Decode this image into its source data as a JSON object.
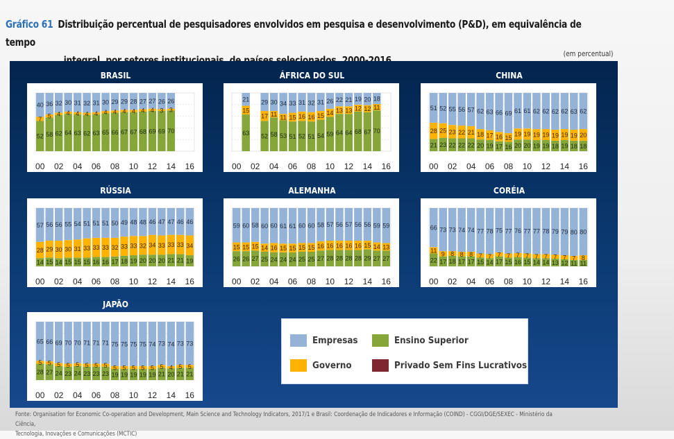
{
  "header": {
    "figure_number": "Gráfico 61",
    "title_line1": "Distribuição percentual de pesquisadores envolvidos em pesquisa e desenvolvimento (P&D), em equivalência de tempo",
    "title_line2": "integral, por setores institucionais, de países selecionados, 2000-2016",
    "unit": "(em percentual)"
  },
  "legend": [
    {
      "key": "empresas",
      "label": "Empresas",
      "color": "#95b3d7"
    },
    {
      "key": "ensino",
      "label": "Ensino Superior",
      "color": "#86a63a"
    },
    {
      "key": "governo",
      "label": "Governo",
      "color": "#ffb300"
    },
    {
      "key": "privado",
      "label": "Privado Sem Fins Lucrativos",
      "color": "#7f2730"
    }
  ],
  "source": {
    "line1": "Fonte: Organisation for Economic Co-operation and Development, Main Science and Technology Indicators, 2017/1 e Brasil: Coordenação de Indicadores e Informação (COIND) - CGGI/DGE/SEXEC - Ministério da Ciência,",
    "line2": "Tecnologia, Inovações e Comunicações (MCTIC)"
  },
  "chart_data": [
    {
      "type": "bar",
      "stacked": true,
      "title": "BRASIL",
      "x": [
        "00",
        "01",
        "02",
        "03",
        "04",
        "05",
        "06",
        "07",
        "08",
        "09",
        "10",
        "11",
        "12",
        "13",
        "14",
        "15",
        "16"
      ],
      "x_tick_labels": [
        "00",
        "02",
        "04",
        "06",
        "08",
        "10",
        "12",
        "14",
        "16"
      ],
      "ylim": [
        0,
        100
      ],
      "series": [
        {
          "name": "Ensino Superior",
          "values": [
            52,
            58,
            62,
            64,
            63,
            62,
            63,
            65,
            66,
            67,
            67,
            68,
            69,
            69,
            70,
            null,
            null
          ]
        },
        {
          "name": "Governo",
          "values": [
            7,
            5,
            4,
            4,
            4,
            4,
            4,
            4,
            4,
            4,
            4,
            4,
            4,
            3,
            3,
            null,
            null
          ]
        },
        {
          "name": "Empresas",
          "values": [
            40,
            36,
            32,
            30,
            31,
            32,
            31,
            30,
            29,
            29,
            28,
            27,
            27,
            26,
            26,
            null,
            null
          ]
        }
      ]
    },
    {
      "type": "bar",
      "stacked": true,
      "title": "ÁFRICA DO SUL",
      "x": [
        "00",
        "01",
        "02",
        "03",
        "04",
        "05",
        "06",
        "07",
        "08",
        "09",
        "10",
        "11",
        "12",
        "13",
        "14",
        "15",
        "16"
      ],
      "x_tick_labels": [
        "00",
        "02",
        "04",
        "06",
        "08",
        "10",
        "12",
        "14",
        "16"
      ],
      "ylim": [
        0,
        100
      ],
      "series": [
        {
          "name": "Ensino Superior",
          "values": [
            null,
            63,
            null,
            52,
            58,
            53,
            51,
            52,
            51,
            54,
            59,
            64,
            64,
            68,
            67,
            70,
            null
          ]
        },
        {
          "name": "Governo",
          "values": [
            null,
            15,
            null,
            17,
            11,
            11,
            15,
            16,
            16,
            15,
            14,
            13,
            13,
            12,
            12,
            11,
            null
          ]
        },
        {
          "name": "Empresas",
          "values": [
            null,
            21,
            null,
            29,
            30,
            34,
            33,
            31,
            32,
            31,
            26,
            22,
            21,
            19,
            20,
            18,
            null
          ]
        }
      ]
    },
    {
      "type": "bar",
      "stacked": true,
      "title": "CHINA",
      "x": [
        "00",
        "01",
        "02",
        "03",
        "04",
        "05",
        "06",
        "07",
        "08",
        "09",
        "10",
        "11",
        "12",
        "13",
        "14",
        "15",
        "16"
      ],
      "x_tick_labels": [
        "00",
        "02",
        "04",
        "06",
        "08",
        "10",
        "12",
        "14",
        "16"
      ],
      "ylim": [
        0,
        100
      ],
      "series": [
        {
          "name": "Ensino Superior",
          "values": [
            21,
            23,
            22,
            22,
            22,
            20,
            19,
            17,
            16,
            20,
            20,
            19,
            19,
            18,
            19,
            18,
            18
          ]
        },
        {
          "name": "Governo",
          "values": [
            28,
            25,
            23,
            22,
            21,
            18,
            17,
            16,
            15,
            19,
            19,
            19,
            19,
            19,
            19,
            19,
            20
          ]
        },
        {
          "name": "Empresas",
          "values": [
            51,
            52,
            55,
            56,
            57,
            62,
            63,
            66,
            69,
            61,
            61,
            62,
            62,
            62,
            62,
            63,
            62
          ]
        }
      ]
    },
    {
      "type": "bar",
      "stacked": true,
      "title": "RÚSSIA",
      "x": [
        "00",
        "01",
        "02",
        "03",
        "04",
        "05",
        "06",
        "07",
        "08",
        "09",
        "10",
        "11",
        "12",
        "13",
        "14",
        "15",
        "16"
      ],
      "x_tick_labels": [
        "00",
        "02",
        "04",
        "06",
        "08",
        "10",
        "12",
        "14",
        "16"
      ],
      "ylim": [
        0,
        100
      ],
      "series": [
        {
          "name": "Ensino Superior",
          "values": [
            14,
            15,
            14,
            15,
            15,
            15,
            16,
            16,
            17,
            18,
            19,
            20,
            20,
            20,
            21,
            21,
            19
          ]
        },
        {
          "name": "Governo",
          "values": [
            28,
            29,
            30,
            30,
            31,
            33,
            33,
            33,
            32,
            33,
            33,
            32,
            34,
            33,
            33,
            33,
            34
          ]
        },
        {
          "name": "Empresas",
          "values": [
            57,
            56,
            56,
            55,
            54,
            51,
            51,
            51,
            50,
            49,
            48,
            48,
            46,
            47,
            47,
            46,
            46
          ]
        }
      ]
    },
    {
      "type": "bar",
      "stacked": true,
      "title": "ALEMANHA",
      "x": [
        "00",
        "01",
        "02",
        "03",
        "04",
        "05",
        "06",
        "07",
        "08",
        "09",
        "10",
        "11",
        "12",
        "13",
        "14",
        "15",
        "16"
      ],
      "x_tick_labels": [
        "00",
        "02",
        "04",
        "06",
        "08",
        "10",
        "12",
        "14",
        "16"
      ],
      "ylim": [
        0,
        100
      ],
      "series": [
        {
          "name": "Ensino Superior",
          "values": [
            26,
            26,
            27,
            25,
            24,
            24,
            24,
            25,
            25,
            27,
            28,
            28,
            28,
            28,
            29,
            27,
            27
          ]
        },
        {
          "name": "Governo",
          "values": [
            15,
            15,
            15,
            14,
            16,
            15,
            15,
            15,
            15,
            16,
            16,
            16,
            16,
            16,
            15,
            14,
            13
          ]
        },
        {
          "name": "Empresas",
          "values": [
            59,
            60,
            58,
            60,
            60,
            61,
            61,
            60,
            60,
            58,
            57,
            56,
            57,
            56,
            56,
            59,
            59
          ]
        }
      ]
    },
    {
      "type": "bar",
      "stacked": true,
      "title": "CORÉIA",
      "x": [
        "00",
        "01",
        "02",
        "03",
        "04",
        "05",
        "06",
        "07",
        "08",
        "09",
        "10",
        "11",
        "12",
        "13",
        "14",
        "15",
        "16"
      ],
      "x_tick_labels": [
        "00",
        "02",
        "04",
        "06",
        "08",
        "10",
        "12",
        "14",
        "16"
      ],
      "ylim": [
        0,
        100
      ],
      "series": [
        {
          "name": "Ensino Superior",
          "values": [
            22,
            17,
            18,
            17,
            17,
            15,
            14,
            17,
            15,
            16,
            15,
            14,
            14,
            13,
            12,
            11,
            11
          ]
        },
        {
          "name": "Governo",
          "values": [
            11,
            9,
            8,
            8,
            8,
            7,
            7,
            7,
            7,
            7,
            7,
            7,
            7,
            7,
            7,
            7,
            8
          ]
        },
        {
          "name": "Empresas",
          "values": [
            66,
            73,
            73,
            74,
            74,
            77,
            78,
            75,
            77,
            76,
            77,
            77,
            78,
            79,
            79,
            80,
            80
          ]
        }
      ]
    },
    {
      "type": "bar",
      "stacked": true,
      "title": "JAPÃO",
      "x": [
        "00",
        "01",
        "02",
        "03",
        "04",
        "05",
        "06",
        "07",
        "08",
        "09",
        "10",
        "11",
        "12",
        "13",
        "14",
        "15",
        "16"
      ],
      "x_tick_labels": [
        "00",
        "02",
        "04",
        "06",
        "08",
        "10",
        "12",
        "14",
        "16"
      ],
      "ylim": [
        0,
        100
      ],
      "series": [
        {
          "name": "Ensino Superior",
          "values": [
            28,
            27,
            24,
            23,
            24,
            23,
            23,
            23,
            19,
            19,
            19,
            19,
            19,
            21,
            20,
            21,
            21
          ]
        },
        {
          "name": "Governo",
          "values": [
            5,
            5,
            5,
            5,
            5,
            5,
            5,
            5,
            5,
            5,
            5,
            5,
            5,
            5,
            4,
            5,
            5
          ]
        },
        {
          "name": "Empresas",
          "values": [
            65,
            66,
            69,
            70,
            70,
            71,
            71,
            71,
            75,
            75,
            75,
            75,
            74,
            73,
            74,
            73,
            73
          ]
        }
      ]
    }
  ]
}
